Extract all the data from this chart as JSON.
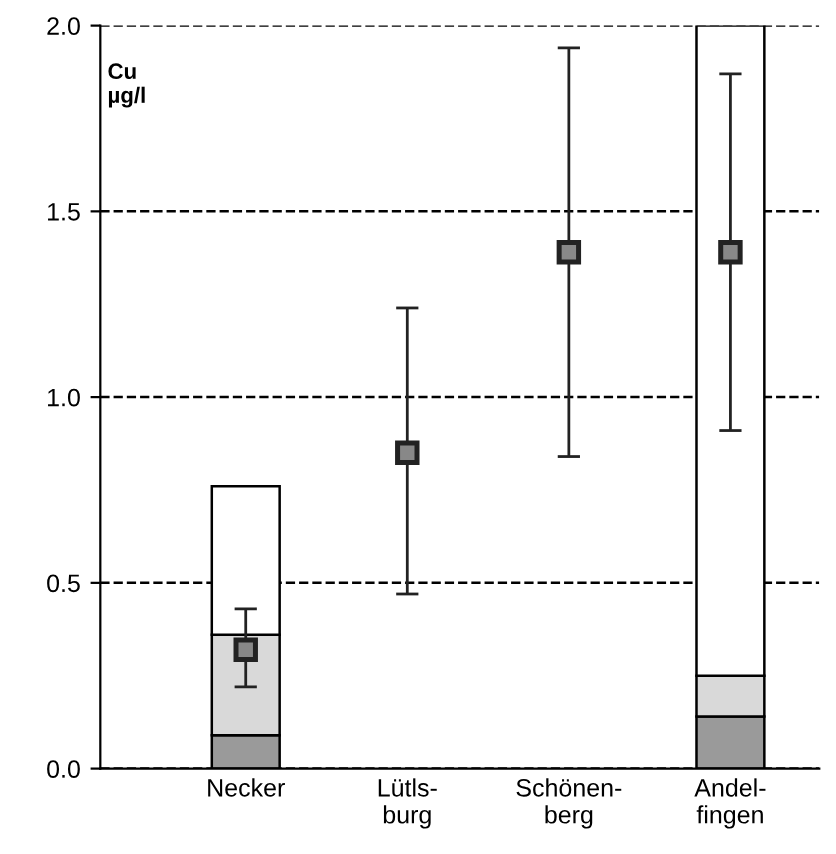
{
  "chart_data": {
    "type": "bar",
    "stacked": true,
    "ylabel": "Cu\nµg/l",
    "categories": [
      "Necker",
      "Lütls-\nburg",
      "Schönen-\nberg",
      "Andel-\nfingen"
    ],
    "series": [
      {
        "color": "#9a9a9a",
        "values": [
          0.09,
          null,
          null,
          0.14
        ]
      },
      {
        "color": "#d9d9d9",
        "values": [
          0.27,
          null,
          null,
          0.11
        ]
      },
      {
        "color": "#ffffff",
        "values": [
          0.4,
          null,
          null,
          1.75
        ]
      },
      {
        "type": "scatter",
        "color": "#222222",
        "marker": "square",
        "x": [
          "Necker",
          "Lütls-\nburg",
          "Schönen-\nberg",
          "Andel-\nfingen"
        ],
        "values": [
          0.32,
          0.85,
          1.39,
          1.39
        ],
        "errors": [
          [
            0.22,
            0.43
          ],
          [
            0.47,
            1.24
          ],
          [
            0.84,
            1.94
          ],
          [
            0.91,
            1.87
          ]
        ]
      }
    ],
    "ylim": [
      0,
      2.0
    ],
    "yticks": [
      {
        "value": 0,
        "label": "0.0"
      },
      0.5,
      {
        "value": 1,
        "label": "1.0"
      },
      1.5,
      {
        "value": 2,
        "label": "2.0"
      }
    ],
    "grid": "y",
    "line_style": "dashed",
    "legend": false
  }
}
